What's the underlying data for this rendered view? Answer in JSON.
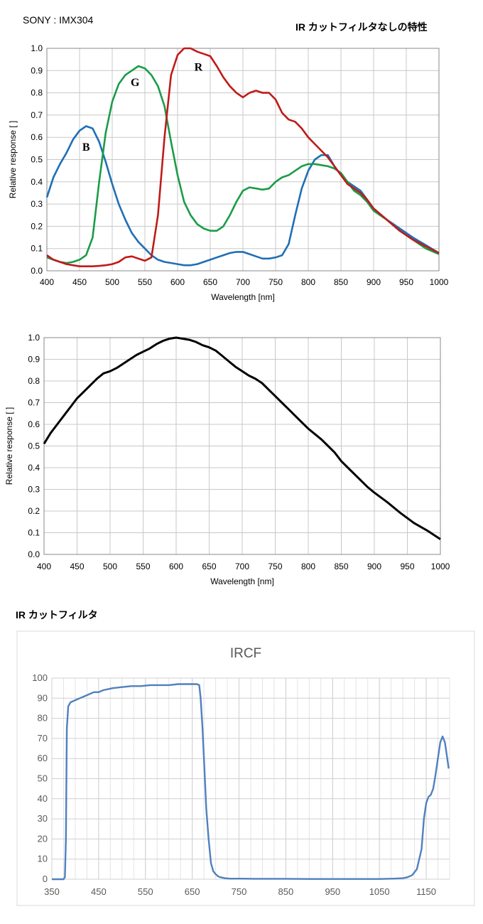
{
  "header": {
    "brand": "SONY : IMX304",
    "title_no_ircf": "IR カットフィルタなしの特性",
    "title_ircf": "IR カットフィルタ"
  },
  "chart_data": [
    {
      "type": "line",
      "xlabel": "Wavelength [nm]",
      "ylabel": "Relative response [ ]",
      "xlim": [
        400,
        1000
      ],
      "ylim": [
        0,
        1.0
      ],
      "xticks": [
        400,
        450,
        500,
        550,
        600,
        650,
        700,
        750,
        800,
        850,
        900,
        950,
        1000
      ],
      "yticks": [
        0,
        0.1,
        0.2,
        0.3,
        0.4,
        0.5,
        0.6,
        0.7,
        0.8,
        0.9,
        1.0
      ],
      "grid": true,
      "series": [
        {
          "name": "B",
          "color": "#1f6fb4",
          "label_at": [
            460,
            0.54
          ],
          "x": [
            400,
            410,
            420,
            430,
            440,
            450,
            460,
            470,
            480,
            490,
            500,
            510,
            520,
            530,
            540,
            550,
            560,
            570,
            580,
            590,
            600,
            610,
            620,
            630,
            640,
            650,
            660,
            670,
            680,
            690,
            700,
            710,
            720,
            730,
            740,
            750,
            760,
            770,
            780,
            790,
            800,
            810,
            820,
            830,
            840,
            850,
            860,
            870,
            880,
            890,
            900,
            920,
            940,
            960,
            980,
            1000
          ],
          "y": [
            0.33,
            0.42,
            0.48,
            0.53,
            0.59,
            0.63,
            0.65,
            0.64,
            0.58,
            0.49,
            0.39,
            0.3,
            0.23,
            0.17,
            0.13,
            0.1,
            0.07,
            0.05,
            0.04,
            0.035,
            0.03,
            0.025,
            0.025,
            0.03,
            0.04,
            0.05,
            0.06,
            0.07,
            0.08,
            0.085,
            0.085,
            0.075,
            0.065,
            0.055,
            0.055,
            0.06,
            0.07,
            0.12,
            0.25,
            0.37,
            0.45,
            0.5,
            0.52,
            0.52,
            0.47,
            0.43,
            0.4,
            0.38,
            0.36,
            0.32,
            0.28,
            0.23,
            0.19,
            0.15,
            0.115,
            0.08
          ]
        },
        {
          "name": "G",
          "color": "#1a9c48",
          "label_at": [
            535,
            0.83
          ],
          "x": [
            400,
            410,
            420,
            430,
            440,
            450,
            460,
            470,
            480,
            490,
            500,
            510,
            520,
            530,
            540,
            550,
            560,
            570,
            580,
            590,
            600,
            610,
            620,
            630,
            640,
            650,
            660,
            670,
            680,
            690,
            700,
            710,
            720,
            730,
            740,
            750,
            760,
            770,
            780,
            790,
            800,
            810,
            820,
            830,
            840,
            850,
            860,
            870,
            880,
            890,
            900,
            920,
            940,
            960,
            980,
            1000
          ],
          "y": [
            0.06,
            0.05,
            0.04,
            0.035,
            0.04,
            0.05,
            0.07,
            0.15,
            0.4,
            0.62,
            0.76,
            0.84,
            0.88,
            0.9,
            0.92,
            0.91,
            0.88,
            0.83,
            0.74,
            0.58,
            0.43,
            0.31,
            0.25,
            0.21,
            0.19,
            0.18,
            0.18,
            0.2,
            0.25,
            0.31,
            0.36,
            0.375,
            0.37,
            0.365,
            0.37,
            0.4,
            0.42,
            0.43,
            0.45,
            0.47,
            0.48,
            0.48,
            0.475,
            0.47,
            0.46,
            0.44,
            0.4,
            0.36,
            0.34,
            0.31,
            0.27,
            0.23,
            0.18,
            0.14,
            0.1,
            0.075
          ]
        },
        {
          "name": "R",
          "color": "#c01a1a",
          "label_at": [
            632,
            0.9
          ],
          "x": [
            400,
            410,
            420,
            430,
            440,
            450,
            460,
            470,
            480,
            490,
            500,
            510,
            520,
            530,
            540,
            550,
            560,
            570,
            580,
            590,
            600,
            610,
            620,
            630,
            640,
            650,
            660,
            670,
            680,
            690,
            700,
            710,
            720,
            730,
            740,
            750,
            760,
            770,
            780,
            790,
            800,
            810,
            820,
            830,
            840,
            850,
            860,
            870,
            880,
            890,
            900,
            920,
            940,
            960,
            980,
            1000
          ],
          "y": [
            0.07,
            0.05,
            0.04,
            0.03,
            0.025,
            0.02,
            0.02,
            0.02,
            0.022,
            0.025,
            0.03,
            0.04,
            0.06,
            0.065,
            0.055,
            0.045,
            0.06,
            0.25,
            0.6,
            0.88,
            0.97,
            1.0,
            1.0,
            0.985,
            0.975,
            0.965,
            0.92,
            0.87,
            0.83,
            0.8,
            0.78,
            0.8,
            0.81,
            0.8,
            0.8,
            0.77,
            0.71,
            0.68,
            0.67,
            0.64,
            0.6,
            0.57,
            0.54,
            0.51,
            0.47,
            0.43,
            0.39,
            0.37,
            0.35,
            0.32,
            0.28,
            0.23,
            0.18,
            0.14,
            0.11,
            0.08
          ]
        }
      ]
    },
    {
      "type": "line",
      "xlabel": "Wavelength [nm]",
      "ylabel": "Relative response [ ]",
      "xlim": [
        400,
        1000
      ],
      "ylim": [
        0,
        1.0
      ],
      "xticks": [
        400,
        450,
        500,
        550,
        600,
        650,
        700,
        750,
        800,
        850,
        900,
        950,
        1000
      ],
      "yticks": [
        0,
        0.1,
        0.2,
        0.3,
        0.4,
        0.5,
        0.6,
        0.7,
        0.8,
        0.9,
        1.0
      ],
      "grid": true,
      "series": [
        {
          "color": "#000000",
          "x": [
            400,
            410,
            420,
            430,
            440,
            450,
            460,
            470,
            480,
            490,
            500,
            510,
            520,
            530,
            540,
            550,
            560,
            570,
            580,
            590,
            600,
            610,
            620,
            630,
            640,
            650,
            660,
            670,
            680,
            690,
            700,
            710,
            720,
            730,
            740,
            750,
            760,
            770,
            780,
            790,
            800,
            810,
            820,
            830,
            840,
            850,
            860,
            870,
            880,
            890,
            900,
            920,
            940,
            960,
            980,
            1000
          ],
          "y": [
            0.51,
            0.56,
            0.6,
            0.64,
            0.68,
            0.72,
            0.75,
            0.78,
            0.81,
            0.835,
            0.845,
            0.86,
            0.88,
            0.9,
            0.92,
            0.935,
            0.95,
            0.97,
            0.985,
            0.995,
            1.0,
            0.995,
            0.99,
            0.98,
            0.965,
            0.955,
            0.94,
            0.915,
            0.89,
            0.865,
            0.845,
            0.825,
            0.81,
            0.79,
            0.76,
            0.73,
            0.7,
            0.67,
            0.64,
            0.61,
            0.58,
            0.555,
            0.53,
            0.5,
            0.47,
            0.43,
            0.4,
            0.37,
            0.34,
            0.31,
            0.285,
            0.24,
            0.19,
            0.145,
            0.11,
            0.07
          ]
        }
      ]
    },
    {
      "type": "line",
      "title": "IRCF",
      "xlim": [
        350,
        1200
      ],
      "ylim": [
        0,
        100
      ],
      "xticks": [
        350,
        450,
        550,
        650,
        750,
        850,
        950,
        1050,
        1150
      ],
      "yticks": [
        0,
        10,
        20,
        30,
        40,
        50,
        60,
        70,
        80,
        90,
        100
      ],
      "grid": true,
      "series": [
        {
          "color": "#4f81bd",
          "x": [
            350,
            360,
            370,
            375,
            378,
            380,
            382,
            385,
            390,
            400,
            410,
            420,
            430,
            440,
            450,
            460,
            480,
            500,
            520,
            540,
            560,
            580,
            600,
            620,
            640,
            660,
            665,
            668,
            672,
            676,
            680,
            685,
            690,
            695,
            700,
            705,
            710,
            720,
            730,
            740,
            750,
            760,
            780,
            800,
            850,
            900,
            950,
            1000,
            1050,
            1080,
            1100,
            1110,
            1120,
            1130,
            1140,
            1145,
            1150,
            1155,
            1160,
            1165,
            1170,
            1175,
            1180,
            1185,
            1190,
            1195,
            1198
          ],
          "y": [
            0,
            0,
            0,
            0,
            1,
            20,
            75,
            86,
            88,
            89,
            90,
            91,
            92,
            93,
            93,
            94,
            95,
            95.5,
            96,
            96,
            96.5,
            96.5,
            96.5,
            97,
            97,
            97,
            96.5,
            90,
            75,
            55,
            35,
            20,
            8,
            4,
            2.5,
            1.5,
            1,
            0.5,
            0.3,
            0.3,
            0.3,
            0.3,
            0.2,
            0.2,
            0.2,
            0.1,
            0.1,
            0.1,
            0.1,
            0.3,
            0.5,
            1,
            2,
            5,
            15,
            30,
            38,
            41,
            42,
            45,
            52,
            60,
            68,
            71,
            68,
            60,
            55
          ]
        }
      ]
    }
  ]
}
